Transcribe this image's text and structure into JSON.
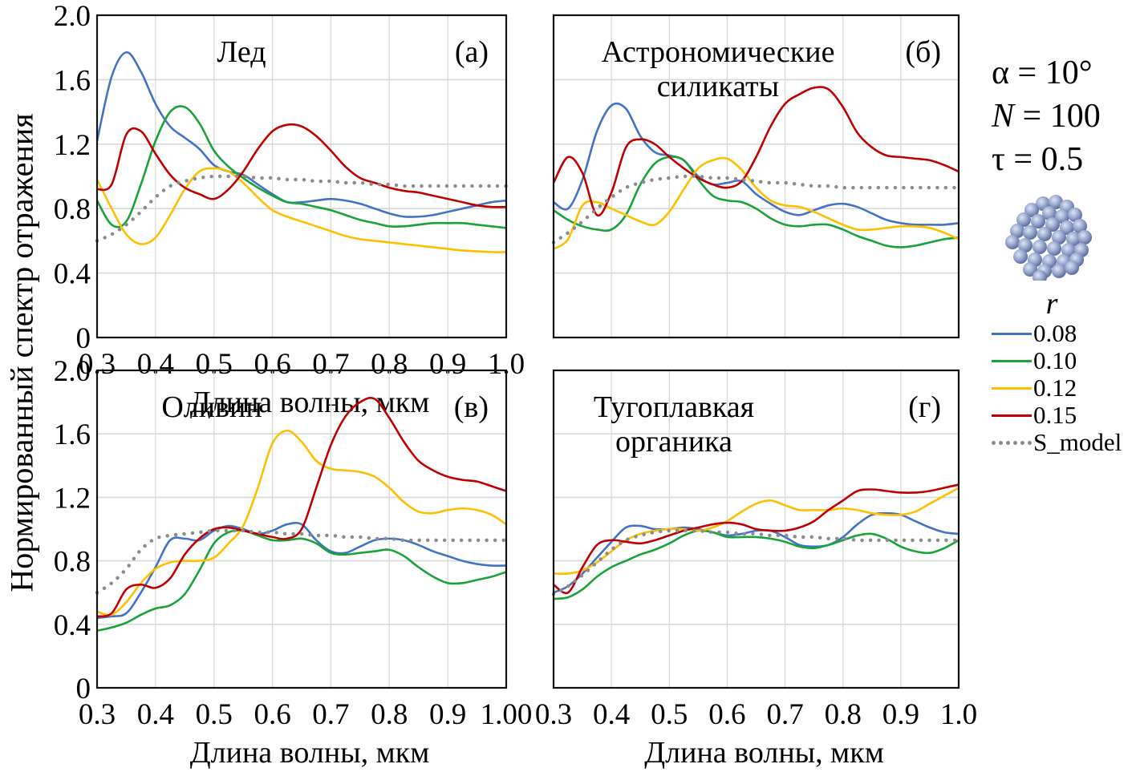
{
  "figure": {
    "ylabel": "Нормированный спектр отражения",
    "xlabel": "Длина волны, мкм",
    "params": {
      "alpha": "α = 10°",
      "N_symbol": "N",
      "N_rest": " = 100",
      "tau": "τ = 0.5"
    },
    "cluster_icon": "sphere-cluster-icon",
    "legend_title": "r"
  },
  "chart_data": [
    {
      "type": "line",
      "panel_id": "a",
      "title": "Лед",
      "panel_label": "(a)",
      "xlabel": "Длина волны, мкм",
      "ylabel": "Нормированный спектр отражения",
      "xlim": [
        0.3,
        1.0
      ],
      "ylim": [
        0,
        2.0
      ],
      "xticks": [
        "0.3",
        "0.4",
        "0.5",
        "0.6",
        "0.7",
        "0.8",
        "0.9",
        "1.0"
      ],
      "yticks": [
        "0",
        "0.4",
        "0.8",
        "1.2",
        "1.6",
        "2.0"
      ],
      "grid": true,
      "legend": "right-outside",
      "x": [
        0.3,
        0.325,
        0.35,
        0.375,
        0.4,
        0.425,
        0.45,
        0.475,
        0.5,
        0.525,
        0.55,
        0.575,
        0.6,
        0.625,
        0.65,
        0.675,
        0.7,
        0.725,
        0.75,
        0.775,
        0.8,
        0.825,
        0.85,
        0.875,
        0.9,
        0.925,
        0.95,
        0.975,
        1.0
      ],
      "series": [
        {
          "name": "0.08",
          "color": "#4472c4",
          "values": [
            1.22,
            1.62,
            1.77,
            1.65,
            1.45,
            1.31,
            1.24,
            1.17,
            1.07,
            1.03,
            1.01,
            0.95,
            0.89,
            0.84,
            0.84,
            0.85,
            0.86,
            0.85,
            0.83,
            0.8,
            0.77,
            0.75,
            0.75,
            0.76,
            0.78,
            0.8,
            0.82,
            0.84,
            0.85
          ]
        },
        {
          "name": "0.10",
          "color": "#1aa33a",
          "values": [
            0.85,
            0.7,
            0.72,
            0.95,
            1.22,
            1.4,
            1.43,
            1.33,
            1.16,
            1.06,
            0.99,
            0.93,
            0.88,
            0.84,
            0.83,
            0.81,
            0.79,
            0.76,
            0.73,
            0.71,
            0.69,
            0.69,
            0.7,
            0.71,
            0.71,
            0.71,
            0.7,
            0.69,
            0.68
          ]
        },
        {
          "name": "0.12",
          "color": "#ffc000",
          "values": [
            0.98,
            0.8,
            0.64,
            0.58,
            0.62,
            0.76,
            0.92,
            1.03,
            1.05,
            1.03,
            0.96,
            0.87,
            0.79,
            0.75,
            0.72,
            0.69,
            0.66,
            0.63,
            0.61,
            0.6,
            0.59,
            0.58,
            0.57,
            0.56,
            0.55,
            0.54,
            0.535,
            0.53,
            0.53
          ]
        },
        {
          "name": "0.15",
          "color": "#c00000",
          "values": [
            0.92,
            0.95,
            1.26,
            1.28,
            1.14,
            1.01,
            0.93,
            0.89,
            0.86,
            0.92,
            1.03,
            1.17,
            1.28,
            1.32,
            1.31,
            1.25,
            1.16,
            1.06,
            0.99,
            0.96,
            0.93,
            0.91,
            0.9,
            0.88,
            0.86,
            0.84,
            0.82,
            0.81,
            0.81
          ]
        },
        {
          "name": "S_model",
          "color": "#8c8c8c",
          "dotted": true,
          "values": [
            0.6,
            0.64,
            0.7,
            0.78,
            0.87,
            0.94,
            0.97,
            0.99,
            1.0,
            1.0,
            1.0,
            0.99,
            0.99,
            0.98,
            0.98,
            0.97,
            0.97,
            0.96,
            0.96,
            0.95,
            0.95,
            0.94,
            0.94,
            0.94,
            0.94,
            0.94,
            0.94,
            0.94,
            0.94
          ]
        }
      ]
    },
    {
      "type": "line",
      "panel_id": "b",
      "title": "Астрономические силикаты",
      "title_lines": [
        "Астрономические",
        "силикаты"
      ],
      "panel_label": "(б)",
      "xlabel": "",
      "ylabel": "",
      "xlim": [
        0.3,
        1.0
      ],
      "ylim": [
        0,
        2.0
      ],
      "xticks": [],
      "yticks": [],
      "grid": true,
      "x": [
        0.3,
        0.325,
        0.35,
        0.375,
        0.4,
        0.425,
        0.45,
        0.475,
        0.5,
        0.525,
        0.55,
        0.575,
        0.6,
        0.625,
        0.65,
        0.675,
        0.7,
        0.725,
        0.75,
        0.775,
        0.8,
        0.825,
        0.85,
        0.875,
        0.9,
        0.925,
        0.95,
        0.975,
        1.0
      ],
      "series": [
        {
          "name": "0.08",
          "color": "#4472c4",
          "values": [
            0.84,
            0.8,
            0.98,
            1.28,
            1.44,
            1.42,
            1.25,
            1.15,
            1.13,
            1.1,
            1.0,
            0.95,
            0.96,
            0.97,
            0.89,
            0.83,
            0.78,
            0.76,
            0.79,
            0.82,
            0.83,
            0.81,
            0.77,
            0.73,
            0.71,
            0.7,
            0.7,
            0.7,
            0.71
          ]
        },
        {
          "name": "0.10",
          "color": "#1aa33a",
          "values": [
            0.79,
            0.73,
            0.69,
            0.67,
            0.67,
            0.76,
            0.95,
            1.08,
            1.12,
            1.1,
            0.98,
            0.88,
            0.85,
            0.84,
            0.8,
            0.74,
            0.7,
            0.69,
            0.7,
            0.7,
            0.67,
            0.63,
            0.6,
            0.57,
            0.56,
            0.57,
            0.59,
            0.61,
            0.62
          ]
        },
        {
          "name": "0.12",
          "color": "#ffc000",
          "values": [
            0.55,
            0.61,
            0.82,
            0.84,
            0.8,
            0.76,
            0.72,
            0.7,
            0.78,
            0.92,
            1.05,
            1.1,
            1.11,
            1.04,
            0.93,
            0.85,
            0.82,
            0.81,
            0.78,
            0.74,
            0.7,
            0.67,
            0.67,
            0.68,
            0.69,
            0.69,
            0.68,
            0.65,
            0.61
          ]
        },
        {
          "name": "0.15",
          "color": "#c00000",
          "values": [
            0.96,
            1.12,
            1.02,
            0.76,
            0.9,
            1.18,
            1.23,
            1.2,
            1.12,
            1.05,
            0.99,
            0.95,
            0.93,
            0.97,
            1.12,
            1.31,
            1.45,
            1.51,
            1.55,
            1.54,
            1.43,
            1.27,
            1.18,
            1.13,
            1.12,
            1.11,
            1.1,
            1.07,
            1.03
          ]
        },
        {
          "name": "S_model",
          "color": "#8c8c8c",
          "dotted": true,
          "values": [
            0.59,
            0.65,
            0.72,
            0.8,
            0.87,
            0.93,
            0.96,
            0.98,
            0.99,
            1.0,
            1.0,
            0.99,
            0.99,
            0.98,
            0.97,
            0.96,
            0.96,
            0.95,
            0.94,
            0.94,
            0.93,
            0.93,
            0.93,
            0.93,
            0.93,
            0.93,
            0.93,
            0.93,
            0.93
          ]
        }
      ]
    },
    {
      "type": "line",
      "panel_id": "v",
      "title": "Оливин",
      "panel_label": "(в)",
      "xlabel": "Длина волны, мкм",
      "ylabel": "Нормированный спектр отражения",
      "xlim": [
        0.3,
        1.0
      ],
      "ylim": [
        0,
        2.0
      ],
      "xticks": [
        "0.3",
        "0.4",
        "0.5",
        "0.6",
        "0.7",
        "0.8",
        "0.9",
        "1.00"
      ],
      "yticks": [
        "0",
        "0.4",
        "0.8",
        "1.2",
        "1.6",
        "2.0"
      ],
      "grid": true,
      "x": [
        0.3,
        0.325,
        0.35,
        0.375,
        0.4,
        0.425,
        0.45,
        0.475,
        0.5,
        0.525,
        0.55,
        0.575,
        0.6,
        0.625,
        0.65,
        0.675,
        0.7,
        0.725,
        0.75,
        0.775,
        0.8,
        0.825,
        0.85,
        0.875,
        0.9,
        0.925,
        0.95,
        0.975,
        1.0
      ],
      "series": [
        {
          "name": "0.08",
          "color": "#4472c4",
          "values": [
            0.44,
            0.45,
            0.47,
            0.6,
            0.76,
            0.93,
            0.94,
            0.93,
            0.99,
            1.02,
            1.0,
            0.97,
            0.99,
            1.03,
            1.03,
            0.93,
            0.86,
            0.85,
            0.89,
            0.93,
            0.94,
            0.93,
            0.9,
            0.86,
            0.83,
            0.8,
            0.78,
            0.77,
            0.77
          ]
        },
        {
          "name": "0.10",
          "color": "#1aa33a",
          "values": [
            0.36,
            0.38,
            0.41,
            0.46,
            0.5,
            0.52,
            0.59,
            0.74,
            0.91,
            0.98,
            0.99,
            0.96,
            0.93,
            0.93,
            0.94,
            0.91,
            0.85,
            0.84,
            0.85,
            0.86,
            0.87,
            0.83,
            0.76,
            0.7,
            0.66,
            0.66,
            0.68,
            0.7,
            0.73
          ]
        },
        {
          "name": "0.12",
          "color": "#ffc000",
          "values": [
            0.48,
            0.46,
            0.54,
            0.66,
            0.75,
            0.79,
            0.8,
            0.8,
            0.82,
            0.91,
            1.02,
            1.26,
            1.54,
            1.62,
            1.55,
            1.43,
            1.38,
            1.37,
            1.36,
            1.33,
            1.26,
            1.17,
            1.11,
            1.1,
            1.12,
            1.13,
            1.12,
            1.09,
            1.03
          ]
        },
        {
          "name": "0.15",
          "color": "#c00000",
          "values": [
            0.45,
            0.47,
            0.62,
            0.65,
            0.63,
            0.69,
            0.84,
            0.94,
            1.0,
            1.01,
            0.99,
            0.97,
            0.95,
            0.94,
            1.0,
            1.26,
            1.53,
            1.71,
            1.8,
            1.82,
            1.7,
            1.55,
            1.43,
            1.37,
            1.33,
            1.31,
            1.3,
            1.27,
            1.24
          ]
        },
        {
          "name": "S_model",
          "color": "#8c8c8c",
          "dotted": true,
          "values": [
            0.6,
            0.66,
            0.75,
            0.87,
            0.94,
            0.96,
            0.97,
            0.98,
            0.99,
            0.99,
            0.99,
            0.98,
            0.98,
            0.97,
            0.97,
            0.96,
            0.96,
            0.95,
            0.95,
            0.94,
            0.94,
            0.93,
            0.93,
            0.93,
            0.93,
            0.93,
            0.93,
            0.93,
            0.93
          ]
        }
      ]
    },
    {
      "type": "line",
      "panel_id": "g",
      "title": "Тугоплавкая органика",
      "title_lines": [
        "Тугоплавкая",
        "органика"
      ],
      "panel_label": "(г)",
      "xlabel": "Длина волны, мкм",
      "ylabel": "",
      "xlim": [
        0.3,
        1.0
      ],
      "ylim": [
        0,
        2.0
      ],
      "xticks": [
        "0.3",
        "0.4",
        "0.5",
        "0.6",
        "0.7",
        "0.8",
        "0.9",
        "1.0"
      ],
      "yticks": [],
      "grid": true,
      "x": [
        0.3,
        0.325,
        0.35,
        0.375,
        0.4,
        0.425,
        0.45,
        0.475,
        0.5,
        0.525,
        0.55,
        0.575,
        0.6,
        0.625,
        0.65,
        0.675,
        0.7,
        0.725,
        0.75,
        0.775,
        0.8,
        0.825,
        0.85,
        0.875,
        0.9,
        0.925,
        0.95,
        0.975,
        1.0
      ],
      "series": [
        {
          "name": "0.08",
          "color": "#4472c4",
          "values": [
            0.6,
            0.64,
            0.72,
            0.82,
            0.92,
            1.01,
            1.02,
            1.0,
            1.0,
            1.01,
            1.0,
            0.98,
            0.96,
            0.97,
            0.99,
            0.99,
            0.95,
            0.9,
            0.89,
            0.9,
            0.95,
            1.03,
            1.09,
            1.1,
            1.09,
            1.05,
            1.01,
            0.98,
            0.97
          ]
        },
        {
          "name": "0.10",
          "color": "#1aa33a",
          "values": [
            0.56,
            0.57,
            0.62,
            0.7,
            0.76,
            0.8,
            0.84,
            0.87,
            0.91,
            0.96,
            0.99,
            0.98,
            0.95,
            0.95,
            0.95,
            0.94,
            0.92,
            0.89,
            0.88,
            0.9,
            0.93,
            0.96,
            0.97,
            0.94,
            0.89,
            0.86,
            0.85,
            0.88,
            0.93
          ]
        },
        {
          "name": "0.12",
          "color": "#ffc000",
          "values": [
            0.72,
            0.72,
            0.74,
            0.79,
            0.86,
            0.93,
            0.97,
            0.99,
            1.0,
            1.0,
            0.99,
            1.01,
            1.05,
            1.11,
            1.16,
            1.18,
            1.15,
            1.12,
            1.12,
            1.12,
            1.13,
            1.12,
            1.1,
            1.09,
            1.09,
            1.11,
            1.16,
            1.21,
            1.26
          ]
        },
        {
          "name": "0.15",
          "color": "#c00000",
          "values": [
            0.65,
            0.6,
            0.76,
            0.9,
            0.93,
            0.92,
            0.91,
            0.93,
            0.96,
            0.99,
            1.01,
            1.03,
            1.04,
            1.03,
            1.0,
            0.99,
            0.99,
            1.01,
            1.05,
            1.12,
            1.18,
            1.24,
            1.25,
            1.24,
            1.23,
            1.23,
            1.24,
            1.26,
            1.28
          ]
        },
        {
          "name": "S_model",
          "color": "#8c8c8c",
          "dotted": true,
          "values": [
            0.59,
            0.64,
            0.71,
            0.79,
            0.87,
            0.93,
            0.96,
            0.98,
            0.99,
            0.99,
            0.99,
            0.98,
            0.98,
            0.97,
            0.97,
            0.96,
            0.96,
            0.95,
            0.95,
            0.94,
            0.94,
            0.93,
            0.93,
            0.93,
            0.93,
            0.93,
            0.93,
            0.93,
            0.93
          ]
        }
      ]
    }
  ]
}
